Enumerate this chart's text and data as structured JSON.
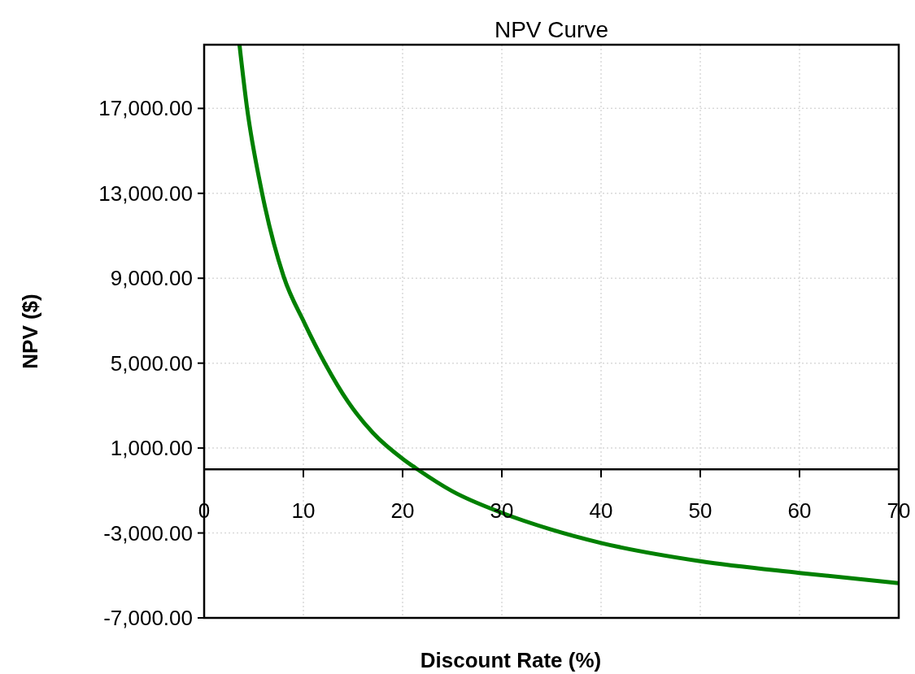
{
  "chart_data": {
    "type": "line",
    "title": "NPV Curve",
    "xlabel": "Discount Rate (%)",
    "ylabel": "NPV ($)",
    "xlim": [
      0,
      70
    ],
    "xticks": [
      0,
      10,
      20,
      30,
      40,
      50,
      60,
      70
    ],
    "ylim": [
      -7000,
      20000
    ],
    "yticks": [
      {
        "value": -7000,
        "label": "-7,000.00"
      },
      {
        "value": -3000,
        "label": "-3,000.00"
      },
      {
        "value": 1000,
        "label": "1,000.00"
      },
      {
        "value": 5000,
        "label": "5,000.00"
      },
      {
        "value": 9000,
        "label": "9,000.00"
      },
      {
        "value": 13000,
        "label": "13,000.00"
      },
      {
        "value": 17000,
        "label": "17,000.00"
      }
    ],
    "grid": true,
    "marker": "none",
    "line_style": "solid",
    "series": [
      {
        "color": "#008000",
        "x": [
          3.56,
          4.3,
          5.8,
          8,
          10.1,
          12.2,
          14.5,
          17,
          20.1,
          21.5,
          25,
          30,
          35,
          40,
          50,
          60,
          70
        ],
        "values": [
          20000,
          17100,
          13100,
          9100,
          6900,
          4970,
          3180,
          1720,
          460,
          0,
          -1030,
          -2050,
          -2840,
          -3470,
          -4330,
          -4880,
          -5360
        ]
      }
    ]
  }
}
